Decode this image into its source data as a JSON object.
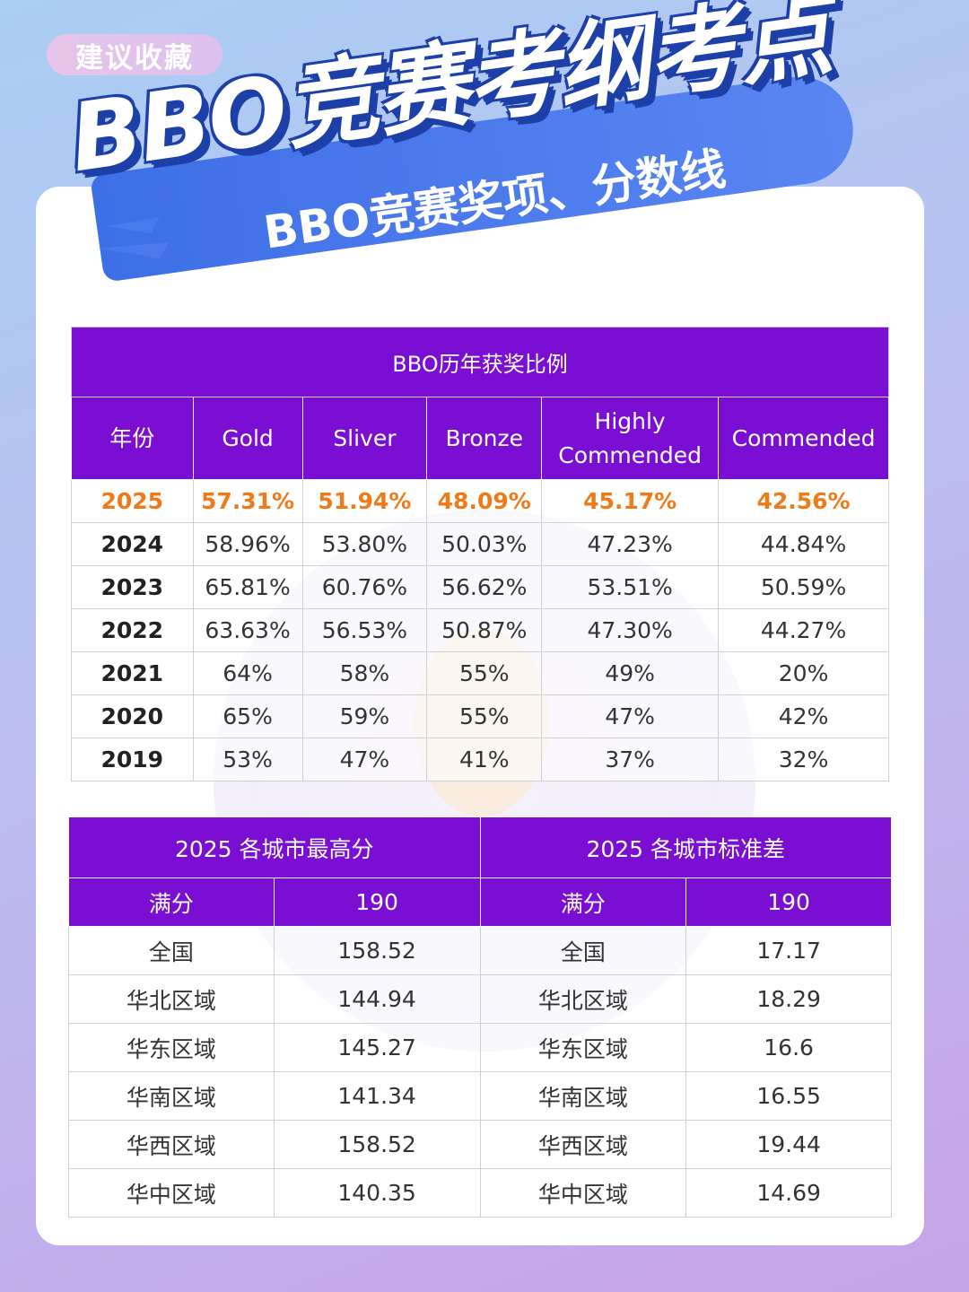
{
  "header": {
    "tag": "建议收藏",
    "title": "BBO竞赛考纲考点",
    "subtitle": "BBO竞赛奖项、分数线"
  },
  "awards_table": {
    "caption": "BBO历年获奖比例",
    "columns": [
      "年份",
      "Gold",
      "Sliver",
      "Bronze",
      "Highly Commended",
      "Commended"
    ],
    "rows": [
      [
        "2025",
        "57.31%",
        "51.94%",
        "48.09%",
        "45.17%",
        "42.56%"
      ],
      [
        "2024",
        "58.96%",
        "53.80%",
        "50.03%",
        "47.23%",
        "44.84%"
      ],
      [
        "2023",
        "65.81%",
        "60.76%",
        "56.62%",
        "53.51%",
        "50.59%"
      ],
      [
        "2022",
        "63.63%",
        "56.53%",
        "50.87%",
        "47.30%",
        "44.27%"
      ],
      [
        "2021",
        "64%",
        "58%",
        "55%",
        "49%",
        "20%"
      ],
      [
        "2020",
        "65%",
        "59%",
        "55%",
        "47%",
        "42%"
      ],
      [
        "2019",
        "53%",
        "47%",
        "41%",
        "37%",
        "32%"
      ]
    ],
    "highlight_color": "#f07a18"
  },
  "city_table": {
    "left_caption": "2025 各城市最高分",
    "right_caption": "2025 各城市标准差",
    "left_header": [
      "满分",
      "190"
    ],
    "right_header": [
      "满分",
      "190"
    ],
    "rows": [
      [
        "全国",
        "158.52",
        "全国",
        "17.17"
      ],
      [
        "华北区域",
        "144.94",
        "华北区域",
        "18.29"
      ],
      [
        "华东区域",
        "145.27",
        "华东区域",
        "16.6"
      ],
      [
        "华南区域",
        "141.34",
        "华南区域",
        "16.55"
      ],
      [
        "华西区域",
        "158.52",
        "华西区域",
        "19.44"
      ],
      [
        "华中区域",
        "140.35",
        "华中区域",
        "14.69"
      ]
    ]
  },
  "colors": {
    "header_purple": "#7a0fd3",
    "ribbon_blue": "#3d6fe6",
    "title_shadow": "#1c3fa8"
  }
}
